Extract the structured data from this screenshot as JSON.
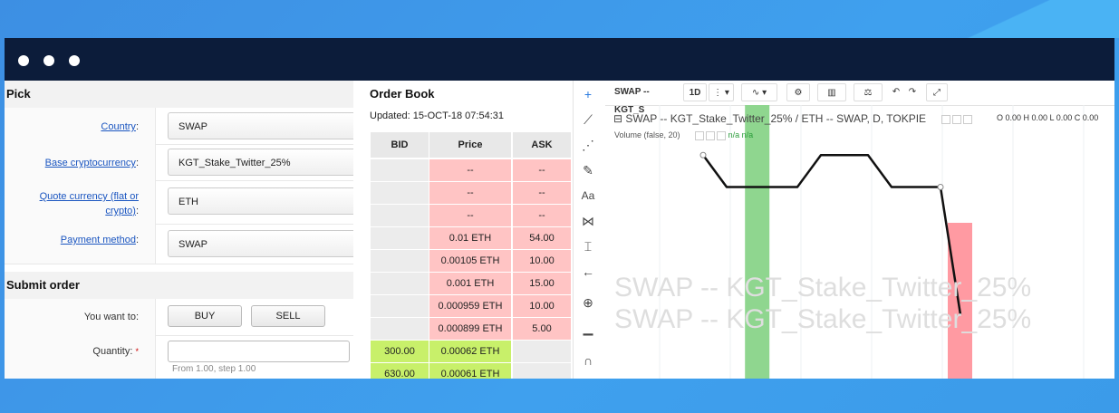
{
  "window": {
    "dots": 3
  },
  "pick": {
    "title": "Pick",
    "fields": [
      {
        "label": "Country",
        "value": "SWAP"
      },
      {
        "label": "Base cryptocurrency",
        "value": "KGT_Stake_Twitter_25%"
      },
      {
        "label_line1": "Quote currency (flat or",
        "label_line2": "crypto)",
        "value": "ETH"
      },
      {
        "label": "Payment method",
        "value": "SWAP"
      }
    ]
  },
  "submit": {
    "title": "Submit order",
    "want_label": "You want to:",
    "buy": "BUY",
    "sell": "SELL",
    "quantity_label": "Quantity:",
    "required": "*",
    "quantity_hint": "From 1.00, step 1.00"
  },
  "order_book": {
    "title": "Order Book",
    "updated": "Updated: 15-OCT-18 07:54:31",
    "headers": {
      "bid": "BID",
      "price": "Price",
      "ask": "ASK"
    },
    "rows": [
      {
        "bid": "",
        "price": "--",
        "ask": "--",
        "side": "ask"
      },
      {
        "bid": "",
        "price": "--",
        "ask": "--",
        "side": "ask"
      },
      {
        "bid": "",
        "price": "--",
        "ask": "--",
        "side": "ask"
      },
      {
        "bid": "",
        "price": "0.01 ETH",
        "ask": "54.00",
        "side": "ask"
      },
      {
        "bid": "",
        "price": "0.00105 ETH",
        "ask": "10.00",
        "side": "ask"
      },
      {
        "bid": "",
        "price": "0.001 ETH",
        "ask": "15.00",
        "side": "ask"
      },
      {
        "bid": "",
        "price": "0.000959 ETH",
        "ask": "10.00",
        "side": "ask"
      },
      {
        "bid": "",
        "price": "0.000899 ETH",
        "ask": "5.00",
        "side": "ask"
      },
      {
        "bid": "300.00",
        "price": "0.00062 ETH",
        "ask": "",
        "side": "bid"
      },
      {
        "bid": "630.00",
        "price": "0.00061 ETH",
        "ask": "",
        "side": "bid"
      }
    ],
    "colors": {
      "ask": "#ffc4c4",
      "bid": "#c8f06a",
      "empty": "#ececec"
    }
  },
  "chart_toolbar": {
    "symbol": "SWAP -- KGT_S",
    "interval": "1D",
    "tools": [
      "crosshair-icon",
      "trend-line-icon",
      "fib-icon",
      "brush-icon",
      "text-icon",
      "pattern-icon",
      "measure-icon",
      "arrow-left-icon",
      "zoom-icon",
      "ruler-icon",
      "magnet-icon"
    ]
  },
  "chart": {
    "legend_main": "SWAP -- KGT_Stake_Twitter_25% / ETH -- SWAP, D, TOKPIE",
    "volume_label": "Volume (false, 20)",
    "na1": "n/a",
    "na2": "n/a",
    "ohlc": "O 0.00  H 0.00  L 0.00  C 0.00",
    "watermark": "SWAP -- KGT_Stake_Twitter_25%",
    "up_color": "#8fd68f",
    "down_color": "#ff9aa2"
  },
  "chart_data": {
    "type": "line",
    "title": "SWAP -- KGT_Stake_Twitter_25% / ETH -- SWAP, D, TOKPIE",
    "series": [
      {
        "values": [
          0.00105,
          0.0009,
          0.0009,
          0.0009,
          0.0009,
          0.00105,
          0.00105,
          0.0009,
          0.0009,
          0.0009,
          0.0003
        ]
      }
    ],
    "volume_bars": [
      {
        "index": 1,
        "direction": "up"
      },
      {
        "index": 10,
        "direction": "down"
      }
    ],
    "ylim": [
      0,
      0.0012
    ],
    "grid": true
  }
}
